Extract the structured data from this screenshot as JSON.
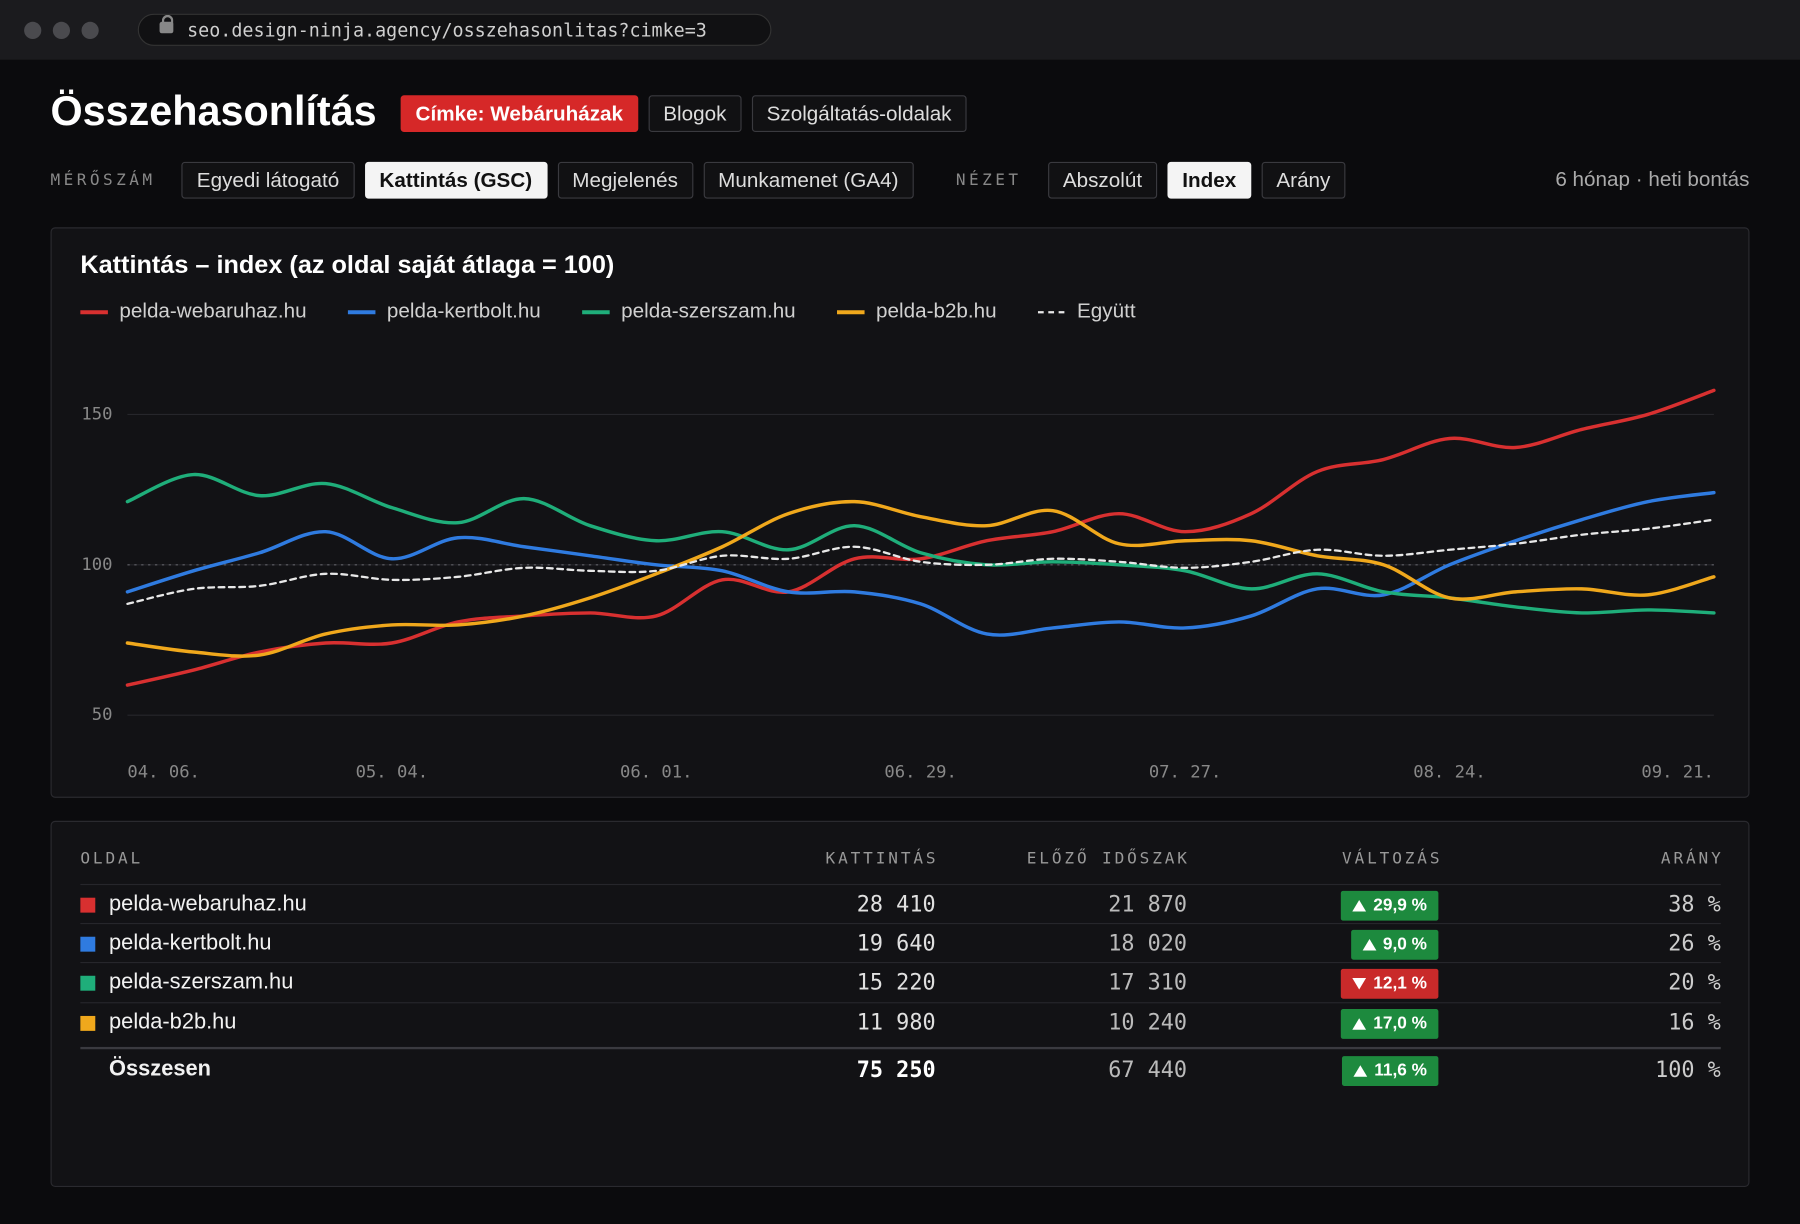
{
  "browser": {
    "url": "seo.design-ninja.agency/osszehasonlitas?cimke=3"
  },
  "header": {
    "title": "Összehasonlítás",
    "tags": [
      {
        "label": "Címke: Webáruházak",
        "active": true
      },
      {
        "label": "Blogok",
        "active": false
      },
      {
        "label": "Szolgáltatás-oldalak",
        "active": false
      }
    ]
  },
  "controls": {
    "metric_label": "MÉRŐSZÁM",
    "metrics": [
      {
        "label": "Egyedi látogató",
        "active": false
      },
      {
        "label": "Kattintás (GSC)",
        "active": true
      },
      {
        "label": "Megjelenés",
        "active": false
      },
      {
        "label": "Munkamenet (GA4)",
        "active": false
      }
    ],
    "view_label": "NÉZET",
    "views": [
      {
        "label": "Abszolút",
        "active": false
      },
      {
        "label": "Index",
        "active": true
      },
      {
        "label": "Arány",
        "active": false
      }
    ],
    "period": "6 hónap · heti bontás"
  },
  "chart_data": {
    "type": "line",
    "title": "Kattintás – index (az oldal saját átlaga = 100)",
    "categories": [
      "04. 06.",
      null,
      null,
      null,
      "05. 04.",
      null,
      null,
      null,
      "06. 01.",
      null,
      null,
      null,
      "06. 29.",
      null,
      null,
      null,
      "07. 27.",
      null,
      null,
      null,
      "08. 24.",
      null,
      null,
      null,
      "09. 21."
    ],
    "series": [
      {
        "name": "pelda-webaruhaz.hu",
        "color": "#d83030",
        "dash": false,
        "values": [
          60,
          65,
          71,
          74,
          74,
          81,
          83,
          84,
          83,
          95,
          91,
          102,
          102,
          108,
          111,
          117,
          111,
          117,
          131,
          135,
          142,
          139,
          145,
          150,
          158
        ]
      },
      {
        "name": "pelda-kertbolt.hu",
        "color": "#2f7be0",
        "dash": false,
        "values": [
          91,
          98,
          104,
          111,
          102,
          109,
          106,
          103,
          100,
          98,
          91,
          91,
          87,
          77,
          79,
          81,
          79,
          83,
          92,
          90,
          100,
          108,
          115,
          121,
          124
        ]
      },
      {
        "name": "pelda-szerszam.hu",
        "color": "#1fae7a",
        "dash": false,
        "values": [
          121,
          130,
          123,
          127,
          119,
          114,
          122,
          113,
          108,
          111,
          105,
          113,
          104,
          100,
          101,
          100,
          98,
          92,
          97,
          91,
          89,
          86,
          84,
          85,
          84
        ]
      },
      {
        "name": "pelda-b2b.hu",
        "color": "#f0a81c",
        "dash": false,
        "values": [
          74,
          71,
          70,
          77,
          80,
          80,
          83,
          89,
          97,
          106,
          117,
          121,
          116,
          113,
          118,
          107,
          108,
          108,
          103,
          100,
          89,
          91,
          92,
          90,
          96
        ]
      },
      {
        "name": "Együtt",
        "color": "#e8e8e8",
        "dash": true,
        "values": [
          87,
          92,
          93,
          97,
          95,
          96,
          99,
          98,
          98,
          103,
          102,
          106,
          101,
          100,
          102,
          101,
          99,
          101,
          105,
          103,
          105,
          107,
          110,
          112,
          115
        ]
      }
    ],
    "ylim": [
      45,
      165
    ],
    "yticks": [
      50,
      100,
      150
    ],
    "grid": true,
    "reference_line": 100
  },
  "table": {
    "columns": [
      "OLDAL",
      "KATTINTÁS",
      "ELŐZŐ IDŐSZAK",
      "VÁLTOZÁS",
      "ARÁNY"
    ],
    "rows": [
      {
        "color": "#d83030",
        "name": "pelda-webaruhaz.hu",
        "clicks": "28 410",
        "previous": "21 870",
        "change": "29,9 %",
        "direction": "up",
        "share": "38 %"
      },
      {
        "color": "#2f7be0",
        "name": "pelda-kertbolt.hu",
        "clicks": "19 640",
        "previous": "18 020",
        "change": "9,0 %",
        "direction": "up",
        "share": "26 %"
      },
      {
        "color": "#1fae7a",
        "name": "pelda-szerszam.hu",
        "clicks": "15 220",
        "previous": "17 310",
        "change": "12,1 %",
        "direction": "down",
        "share": "20 %"
      },
      {
        "color": "#f0a81c",
        "name": "pelda-b2b.hu",
        "clicks": "11 980",
        "previous": "10 240",
        "change": "17,0 %",
        "direction": "up",
        "share": "16 %"
      }
    ],
    "total": {
      "name": "Összesen",
      "clicks": "75 250",
      "previous": "67 440",
      "change": "11,6 %",
      "direction": "up",
      "share": "100 %"
    }
  }
}
